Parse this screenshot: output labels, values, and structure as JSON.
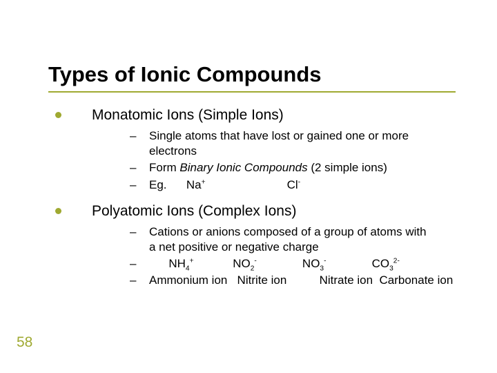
{
  "slide": {
    "title": "Types of Ionic Compounds",
    "rule_color": "#9fa931",
    "page_number": "58",
    "background_color": "#ffffff",
    "text_color": "#000000",
    "title_fontsize": 31,
    "body_fontsize": 21,
    "sub_fontsize": 17,
    "bullets": [
      {
        "label": "Monatomic Ions (Simple Ions)",
        "subs": [
          {
            "plain": "Single atoms that have lost or gained one or more electrons"
          },
          {
            "html": "Form <span class=\"italic\">Binary Ionic Compounds</span> (2 simple ions)"
          },
          {
            "html": "<span class=\"ion-line\">Eg.      Na<span class=\"sup\">+</span>                         Cl<span class=\"sup\">-</span></span>"
          }
        ]
      },
      {
        "label": "Polyatomic Ions (Complex Ions)",
        "subs": [
          {
            "plain": "Cations or anions composed of a group of atoms with a net positive or negative charge"
          },
          {
            "html": "<span class=\"ion-line\">      NH<span class=\"sub-idx\">4</span><span class=\"sup\">+</span>            NO<span class=\"sub-idx\">2</span><span class=\"sup\">-</span>              NO<span class=\"sub-idx\">3</span><span class=\"sup\">-</span>              CO<span class=\"sub-idx\">3</span><span class=\"sup\">2-</span></span>"
          },
          {
            "html": "<span class=\"ion-line\">Ammonium ion   Nitrite ion          Nitrate ion  Carbonate ion</span>"
          }
        ]
      }
    ]
  }
}
